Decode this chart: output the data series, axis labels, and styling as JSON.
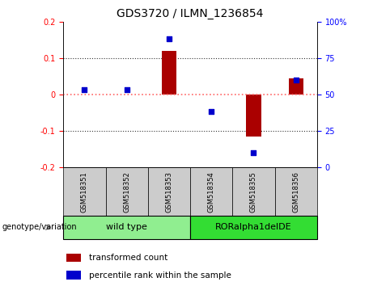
{
  "title": "GDS3720 / ILMN_1236854",
  "samples": [
    "GSM518351",
    "GSM518352",
    "GSM518353",
    "GSM518354",
    "GSM518355",
    "GSM518356"
  ],
  "groups": [
    {
      "name": "wild type",
      "indices": [
        0,
        1,
        2
      ],
      "color": "#90EE90"
    },
    {
      "name": "RORalpha1delDE",
      "indices": [
        3,
        4,
        5
      ],
      "color": "#33DD33"
    }
  ],
  "bar_values": [
    0.0,
    0.0,
    0.12,
    0.0,
    -0.115,
    0.045
  ],
  "scatter_values": [
    53.5,
    53.5,
    88.0,
    38.0,
    10.0,
    60.0
  ],
  "ylim_left": [
    -0.2,
    0.2
  ],
  "ylim_right": [
    0,
    100
  ],
  "yticks_left": [
    -0.2,
    -0.1,
    0.0,
    0.1,
    0.2
  ],
  "yticks_right": [
    0,
    25,
    50,
    75,
    100
  ],
  "bar_color": "#AA0000",
  "scatter_color": "#0000CC",
  "hline_color": "#FF6666",
  "grid_color": "#333333",
  "tick_area_color": "#CCCCCC",
  "legend_transformed": "transformed count",
  "legend_percentile": "percentile rank within the sample",
  "genotype_label": "genotype/variation",
  "bar_width": 0.35,
  "scatter_marker": "s",
  "scatter_size": 18,
  "title_fontsize": 10,
  "label_fontsize": 7,
  "group_fontsize": 8,
  "legend_fontsize": 7.5
}
